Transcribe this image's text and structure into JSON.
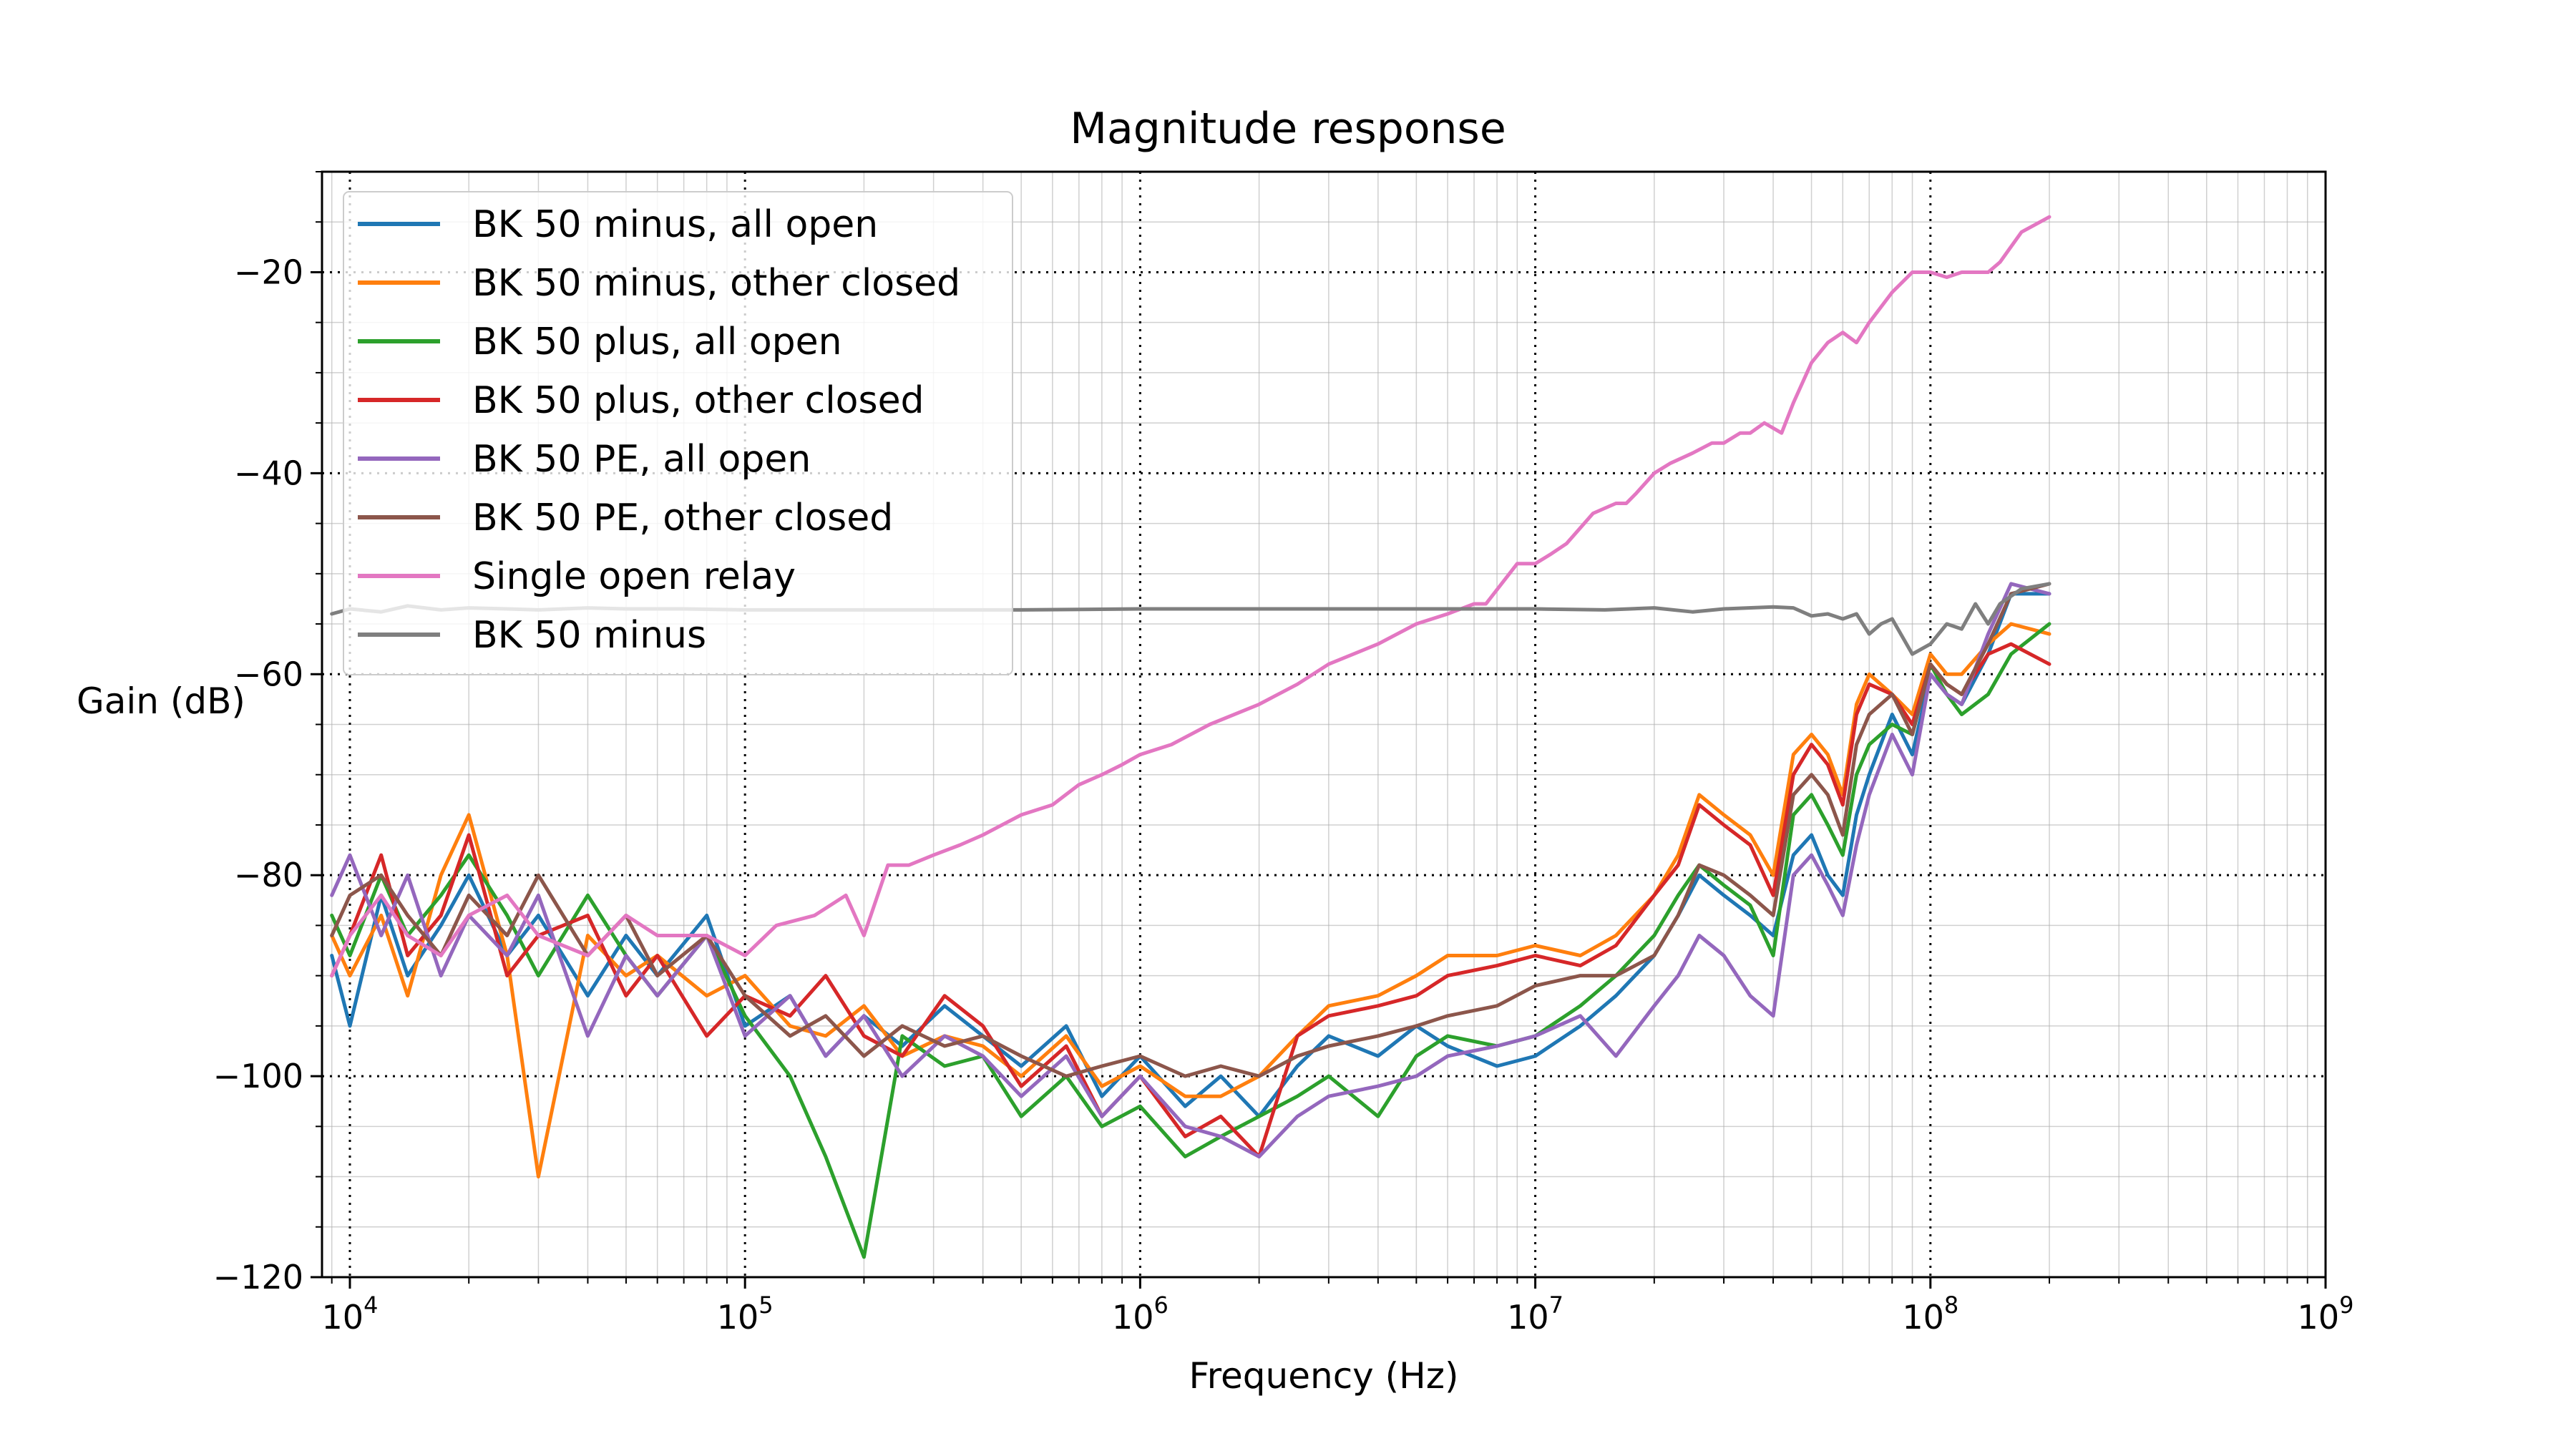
{
  "chart_data": {
    "type": "line",
    "title": "Magnitude response",
    "xlabel": "Frequency (Hz)",
    "ylabel": "Gain (dB)",
    "xscale": "log",
    "xlim": [
      8500,
      1000000000
    ],
    "ylim": [
      -120,
      -10
    ],
    "grid": true,
    "legend_position": "top-left",
    "x_ticks": [
      {
        "value": 10000,
        "base": "10",
        "exp": "4"
      },
      {
        "value": 100000,
        "base": "10",
        "exp": "5"
      },
      {
        "value": 1000000,
        "base": "10",
        "exp": "6"
      },
      {
        "value": 10000000,
        "base": "10",
        "exp": "7"
      },
      {
        "value": 100000000,
        "base": "10",
        "exp": "8"
      },
      {
        "value": 1000000000,
        "base": "10",
        "exp": "9"
      }
    ],
    "y_ticks": [
      {
        "value": -20,
        "label": "−20"
      },
      {
        "value": -40,
        "label": "−40"
      },
      {
        "value": -60,
        "label": "−60"
      },
      {
        "value": -80,
        "label": "−80"
      },
      {
        "value": -100,
        "label": "−100"
      },
      {
        "value": -120,
        "label": "−120"
      }
    ],
    "series": [
      {
        "name": "BK 50 minus, all open",
        "color": "#1f77b4",
        "x": [
          9000,
          10000,
          12000,
          14000,
          17000,
          20000,
          25000,
          30000,
          40000,
          50000,
          60000,
          80000,
          100000,
          130000,
          160000,
          200000,
          250000,
          320000,
          400000,
          500000,
          650000,
          800000,
          1000000,
          1300000,
          1600000,
          2000000,
          2500000,
          3000000,
          4000000,
          5000000,
          6000000,
          8000000,
          10000000,
          13000000,
          16000000,
          20000000,
          23000000,
          26000000,
          30000000,
          35000000,
          40000000,
          45000000,
          50000000,
          55000000,
          60000000,
          65000000,
          70000000,
          80000000,
          90000000,
          100000000,
          110000000,
          120000000,
          140000000,
          160000000,
          200000000
        ],
        "y": [
          -88,
          -95,
          -82,
          -90,
          -85,
          -80,
          -88,
          -84,
          -92,
          -86,
          -90,
          -84,
          -95,
          -92,
          -98,
          -94,
          -97,
          -93,
          -96,
          -99,
          -95,
          -102,
          -98,
          -103,
          -100,
          -104,
          -99,
          -96,
          -98,
          -95,
          -97,
          -99,
          -98,
          -95,
          -92,
          -88,
          -84,
          -80,
          -82,
          -84,
          -86,
          -78,
          -76,
          -80,
          -82,
          -74,
          -70,
          -64,
          -68,
          -60,
          -62,
          -63,
          -58,
          -52,
          -52
        ]
      },
      {
        "name": "BK 50 minus, other closed",
        "color": "#ff7f0e",
        "x": [
          9000,
          10000,
          12000,
          14000,
          17000,
          20000,
          25000,
          30000,
          40000,
          50000,
          60000,
          80000,
          100000,
          130000,
          160000,
          200000,
          250000,
          320000,
          400000,
          500000,
          650000,
          800000,
          1000000,
          1300000,
          1600000,
          2000000,
          2500000,
          3000000,
          4000000,
          5000000,
          6000000,
          8000000,
          10000000,
          13000000,
          16000000,
          20000000,
          23000000,
          26000000,
          30000000,
          35000000,
          40000000,
          45000000,
          50000000,
          55000000,
          60000000,
          65000000,
          70000000,
          80000000,
          90000000,
          100000000,
          110000000,
          120000000,
          140000000,
          160000000,
          200000000
        ],
        "y": [
          -86,
          -90,
          -84,
          -92,
          -80,
          -74,
          -88,
          -110,
          -86,
          -90,
          -88,
          -92,
          -90,
          -95,
          -96,
          -93,
          -98,
          -96,
          -97,
          -100,
          -96,
          -101,
          -99,
          -102,
          -102,
          -100,
          -96,
          -93,
          -92,
          -90,
          -88,
          -88,
          -87,
          -88,
          -86,
          -82,
          -78,
          -72,
          -74,
          -76,
          -80,
          -68,
          -66,
          -68,
          -72,
          -63,
          -60,
          -62,
          -64,
          -58,
          -60,
          -60,
          -57,
          -55,
          -56
        ]
      },
      {
        "name": "BK 50 plus, all open",
        "color": "#2ca02c",
        "x": [
          9000,
          10000,
          12000,
          14000,
          17000,
          20000,
          25000,
          30000,
          40000,
          50000,
          60000,
          80000,
          100000,
          130000,
          160000,
          200000,
          250000,
          320000,
          400000,
          500000,
          650000,
          800000,
          1000000,
          1300000,
          1600000,
          2000000,
          2500000,
          3000000,
          4000000,
          5000000,
          6000000,
          8000000,
          10000000,
          13000000,
          16000000,
          20000000,
          23000000,
          26000000,
          30000000,
          35000000,
          40000000,
          45000000,
          50000000,
          55000000,
          60000000,
          65000000,
          70000000,
          80000000,
          90000000,
          100000000,
          110000000,
          120000000,
          140000000,
          160000000,
          200000000
        ],
        "y": [
          -84,
          -88,
          -80,
          -86,
          -82,
          -78,
          -84,
          -90,
          -82,
          -88,
          -92,
          -86,
          -94,
          -100,
          -108,
          -118,
          -96,
          -99,
          -98,
          -104,
          -100,
          -105,
          -103,
          -108,
          -106,
          -104,
          -102,
          -100,
          -104,
          -98,
          -96,
          -97,
          -96,
          -93,
          -90,
          -86,
          -82,
          -79,
          -81,
          -83,
          -88,
          -74,
          -72,
          -75,
          -78,
          -70,
          -67,
          -65,
          -66,
          -59,
          -62,
          -64,
          -62,
          -58,
          -55
        ]
      },
      {
        "name": "BK 50 plus, other closed",
        "color": "#d62728",
        "x": [
          9000,
          10000,
          12000,
          14000,
          17000,
          20000,
          25000,
          30000,
          40000,
          50000,
          60000,
          80000,
          100000,
          130000,
          160000,
          200000,
          250000,
          320000,
          400000,
          500000,
          650000,
          800000,
          1000000,
          1300000,
          1600000,
          2000000,
          2500000,
          3000000,
          4000000,
          5000000,
          6000000,
          8000000,
          10000000,
          13000000,
          16000000,
          20000000,
          23000000,
          26000000,
          30000000,
          35000000,
          40000000,
          45000000,
          50000000,
          55000000,
          60000000,
          65000000,
          70000000,
          80000000,
          90000000,
          100000000,
          110000000,
          120000000,
          140000000,
          160000000,
          200000000
        ],
        "y": [
          -90,
          -86,
          -78,
          -88,
          -84,
          -76,
          -90,
          -86,
          -84,
          -92,
          -88,
          -96,
          -92,
          -94,
          -90,
          -96,
          -98,
          -92,
          -95,
          -101,
          -97,
          -104,
          -100,
          -106,
          -104,
          -108,
          -96,
          -94,
          -93,
          -92,
          -90,
          -89,
          -88,
          -89,
          -87,
          -82,
          -79,
          -73,
          -75,
          -77,
          -82,
          -70,
          -67,
          -69,
          -73,
          -64,
          -61,
          -62,
          -65,
          -59,
          -61,
          -62,
          -58,
          -57,
          -59
        ]
      },
      {
        "name": "BK 50 PE, all open",
        "color": "#9467bd",
        "x": [
          9000,
          10000,
          12000,
          14000,
          17000,
          20000,
          25000,
          30000,
          40000,
          50000,
          60000,
          80000,
          100000,
          130000,
          160000,
          200000,
          250000,
          320000,
          400000,
          500000,
          650000,
          800000,
          1000000,
          1300000,
          1600000,
          2000000,
          2500000,
          3000000,
          4000000,
          5000000,
          6000000,
          8000000,
          10000000,
          13000000,
          16000000,
          20000000,
          23000000,
          26000000,
          30000000,
          35000000,
          40000000,
          45000000,
          50000000,
          55000000,
          60000000,
          65000000,
          70000000,
          80000000,
          90000000,
          100000000,
          110000000,
          120000000,
          140000000,
          160000000,
          200000000
        ],
        "y": [
          -82,
          -78,
          -86,
          -80,
          -90,
          -84,
          -88,
          -82,
          -96,
          -88,
          -92,
          -86,
          -96,
          -92,
          -98,
          -94,
          -100,
          -96,
          -98,
          -102,
          -98,
          -104,
          -100,
          -105,
          -106,
          -108,
          -104,
          -102,
          -101,
          -100,
          -98,
          -97,
          -96,
          -94,
          -98,
          -93,
          -90,
          -86,
          -88,
          -92,
          -94,
          -80,
          -78,
          -81,
          -84,
          -77,
          -72,
          -66,
          -70,
          -60,
          -62,
          -63,
          -56,
          -51,
          -52
        ]
      },
      {
        "name": "BK 50 PE, other closed",
        "color": "#8c564b",
        "x": [
          9000,
          10000,
          12000,
          14000,
          17000,
          20000,
          25000,
          30000,
          40000,
          50000,
          60000,
          80000,
          100000,
          130000,
          160000,
          200000,
          250000,
          320000,
          400000,
          500000,
          650000,
          800000,
          1000000,
          1300000,
          1600000,
          2000000,
          2500000,
          3000000,
          4000000,
          5000000,
          6000000,
          8000000,
          10000000,
          13000000,
          16000000,
          20000000,
          23000000,
          26000000,
          30000000,
          35000000,
          40000000,
          45000000,
          50000000,
          55000000,
          60000000,
          65000000,
          70000000,
          80000000,
          90000000,
          100000000,
          110000000,
          120000000,
          140000000,
          160000000,
          200000000
        ],
        "y": [
          -86,
          -82,
          -80,
          -84,
          -88,
          -82,
          -86,
          -80,
          -88,
          -84,
          -90,
          -86,
          -92,
          -96,
          -94,
          -98,
          -95,
          -97,
          -96,
          -98,
          -100,
          -99,
          -98,
          -100,
          -99,
          -100,
          -98,
          -97,
          -96,
          -95,
          -94,
          -93,
          -91,
          -90,
          -90,
          -88,
          -84,
          -79,
          -80,
          -82,
          -84,
          -72,
          -70,
          -72,
          -76,
          -67,
          -64,
          -62,
          -66,
          -59,
          -61,
          -62,
          -57,
          -52,
          -51
        ]
      },
      {
        "name": "Single open relay",
        "color": "#e377c2",
        "x": [
          9000,
          10000,
          12000,
          14000,
          17000,
          20000,
          25000,
          30000,
          40000,
          50000,
          60000,
          80000,
          100000,
          120000,
          150000,
          180000,
          200000,
          230000,
          260000,
          300000,
          350000,
          400000,
          500000,
          600000,
          700000,
          800000,
          900000,
          1000000,
          1200000,
          1500000,
          2000000,
          2500000,
          3000000,
          4000000,
          5000000,
          6000000,
          7000000,
          7500000,
          9000000,
          10000000,
          11000000,
          12000000,
          14000000,
          16000000,
          17000000,
          18000000,
          20000000,
          22000000,
          25000000,
          28000000,
          30000000,
          33000000,
          35000000,
          38000000,
          42000000,
          45000000,
          50000000,
          55000000,
          60000000,
          65000000,
          70000000,
          80000000,
          90000000,
          100000000,
          110000000,
          120000000,
          140000000,
          150000000,
          170000000,
          200000000
        ],
        "y": [
          -90,
          -86,
          -82,
          -86,
          -88,
          -84,
          -82,
          -86,
          -88,
          -84,
          -86,
          -86,
          -88,
          -85,
          -84,
          -82,
          -86,
          -79,
          -79,
          -78,
          -77,
          -76,
          -74,
          -73,
          -71,
          -70,
          -69,
          -68,
          -67,
          -65,
          -63,
          -61,
          -59,
          -57,
          -55,
          -54,
          -53,
          -53,
          -49,
          -49,
          -48,
          -47,
          -44,
          -43,
          -43,
          -42,
          -40,
          -39,
          -38,
          -37,
          -37,
          -36,
          -36,
          -35,
          -36,
          -33,
          -29,
          -27,
          -26,
          -27,
          -25,
          -22,
          -20,
          -20,
          -20.5,
          -20,
          -20,
          -19,
          -16,
          -14.5
        ]
      },
      {
        "name": "BK 50 minus",
        "color": "#7f7f7f",
        "x": [
          9000,
          10000,
          12000,
          14000,
          17000,
          20000,
          25000,
          30000,
          40000,
          50000,
          70000,
          100000,
          200000,
          500000,
          1000000,
          2000000,
          5000000,
          10000000,
          15000000,
          20000000,
          25000000,
          30000000,
          40000000,
          45000000,
          50000000,
          55000000,
          60000000,
          65000000,
          70000000,
          75000000,
          80000000,
          90000000,
          100000000,
          110000000,
          120000000,
          130000000,
          140000000,
          150000000,
          170000000,
          200000000
        ],
        "y": [
          -54,
          -53.5,
          -53.8,
          -53.2,
          -53.6,
          -53.4,
          -53.5,
          -53.6,
          -53.4,
          -53.5,
          -53.5,
          -53.6,
          -53.6,
          -53.6,
          -53.5,
          -53.5,
          -53.5,
          -53.5,
          -53.6,
          -53.4,
          -53.8,
          -53.5,
          -53.3,
          -53.4,
          -54.2,
          -54,
          -54.5,
          -54,
          -56,
          -55,
          -54.5,
          -58,
          -57,
          -55,
          -55.5,
          -53,
          -55,
          -53,
          -51.5,
          -51
        ]
      }
    ]
  }
}
